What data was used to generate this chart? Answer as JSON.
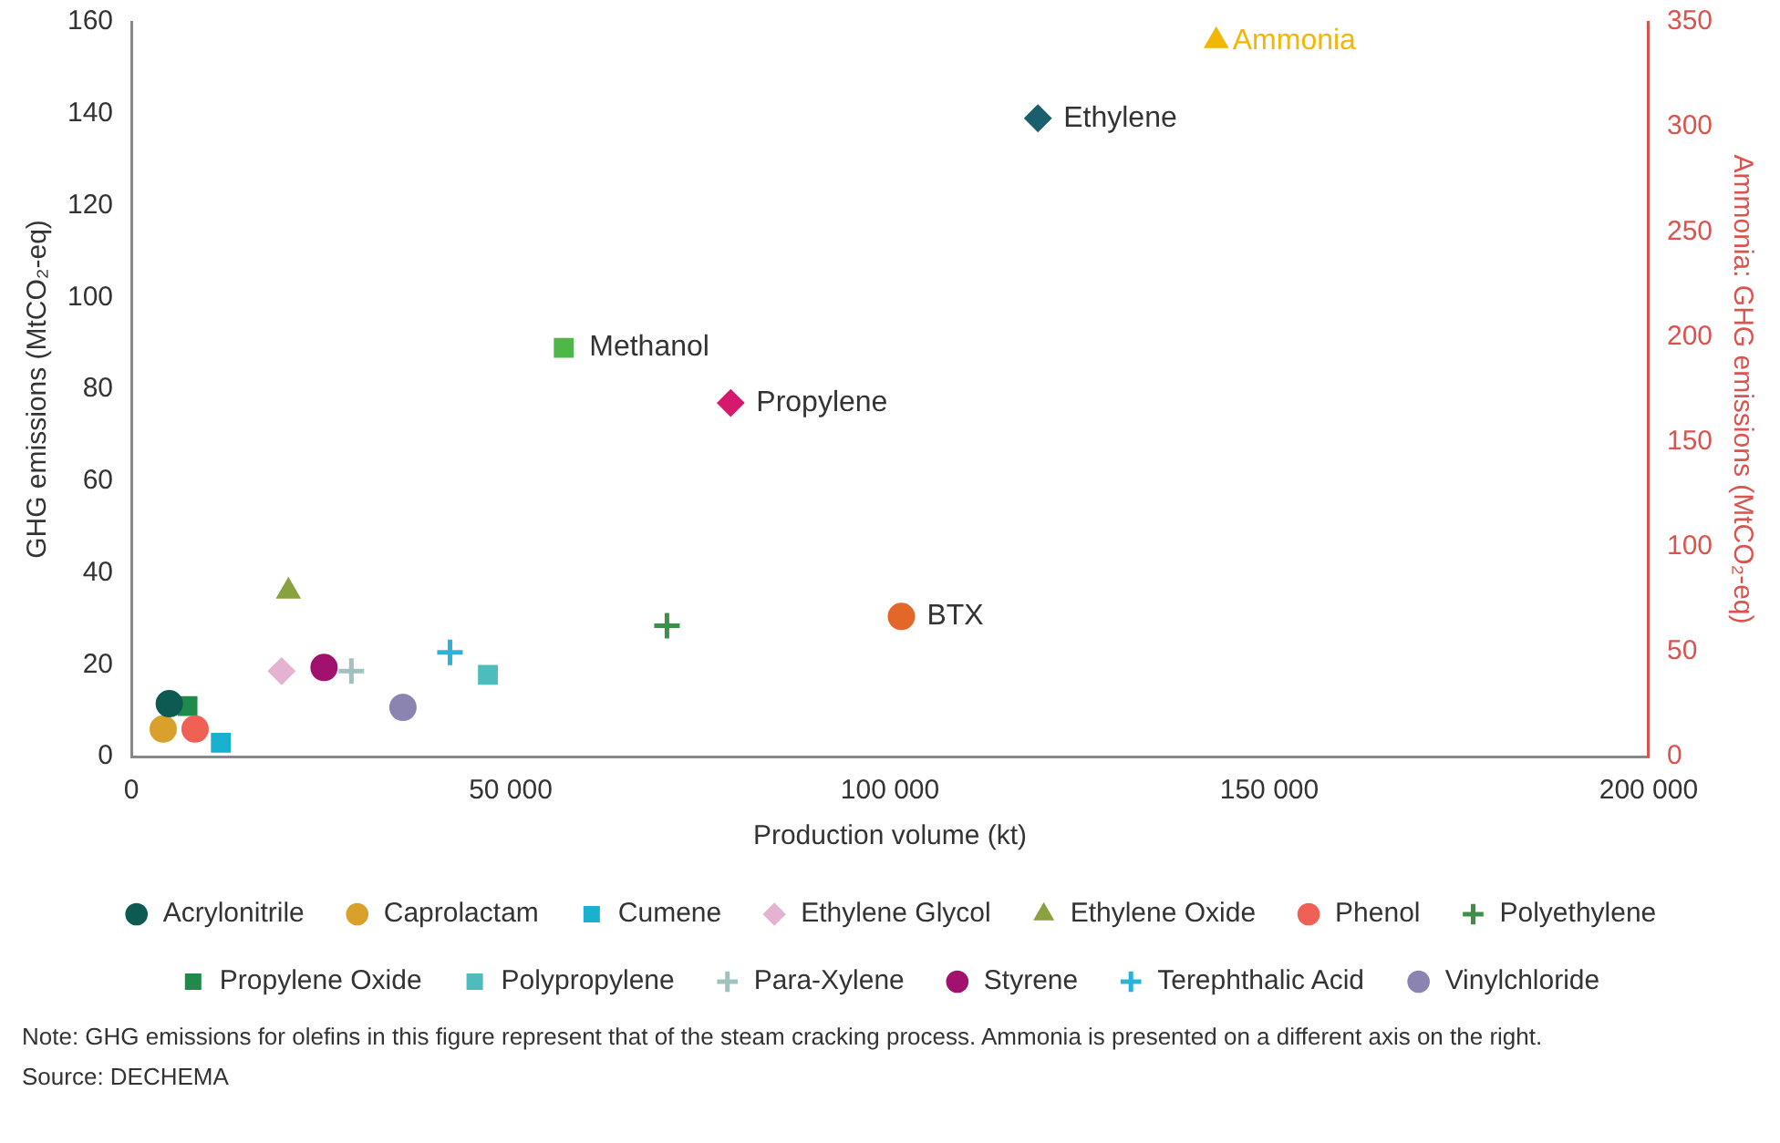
{
  "chart_data": {
    "type": "scatter",
    "xlabel": "Production volume (kt)",
    "ylabel": "GHG emissions (MtCO₂-eq)",
    "y2label": "Ammonia: GHG emissions (MtCO₂-eq)",
    "xlim": [
      0,
      200000
    ],
    "xticks": [
      0,
      {
        "value": 50000,
        "label": "50 000"
      },
      {
        "value": 100000,
        "label": "100 000"
      },
      {
        "value": 150000,
        "label": "150 000"
      },
      {
        "value": 200000,
        "label": "200 000"
      }
    ],
    "ylim": [
      0,
      160
    ],
    "yticks": [
      0,
      20,
      40,
      60,
      80,
      100,
      120,
      140,
      160
    ],
    "y2lim": [
      0,
      350
    ],
    "y2ticks": [
      0,
      50,
      100,
      150,
      200,
      250,
      300,
      350
    ],
    "grid": false,
    "legend": "bottom",
    "series": [
      {
        "name": "Acrylonitrile",
        "color": "#0d5a52",
        "marker": "circle",
        "x": [
          5000
        ],
        "values": [
          11.5
        ]
      },
      {
        "name": "Caprolactam",
        "color": "#d9a02c",
        "marker": "circle",
        "x": [
          4200
        ],
        "values": [
          6
        ]
      },
      {
        "name": "Cumene",
        "color": "#1ab0cf",
        "marker": "square",
        "x": [
          11800
        ],
        "values": [
          3
        ]
      },
      {
        "name": "Ethylene Glycol",
        "color": "#e6b2d2",
        "marker": "diamond",
        "x": [
          19800
        ],
        "values": [
          18.6
        ]
      },
      {
        "name": "Ethylene Oxide",
        "color": "#8aa140",
        "marker": "triangle",
        "x": [
          20700
        ],
        "values": [
          36
        ]
      },
      {
        "name": "Phenol",
        "color": "#ef6055",
        "marker": "circle",
        "x": [
          8400
        ],
        "values": [
          6
        ]
      },
      {
        "name": "Polyethylene",
        "color": "#3f8f4a",
        "marker": "cross",
        "x": [
          70600
        ],
        "values": [
          28.5
        ]
      },
      {
        "name": "Propylene Oxide",
        "color": "#1f8a4c",
        "marker": "square",
        "x": [
          7400
        ],
        "values": [
          11
        ]
      },
      {
        "name": "Polypropylene",
        "color": "#4cbcbc",
        "marker": "square",
        "x": [
          47000
        ],
        "values": [
          17.8
        ]
      },
      {
        "name": "Para-Xylene",
        "color": "#9fc2be",
        "marker": "cross",
        "x": [
          29000
        ],
        "values": [
          18.6
        ]
      },
      {
        "name": "Styrene",
        "color": "#a0126e",
        "marker": "circle",
        "x": [
          25400
        ],
        "values": [
          19.4
        ]
      },
      {
        "name": "Terephthalic Acid",
        "color": "#2ab3d6",
        "marker": "cross",
        "x": [
          42000
        ],
        "values": [
          22.7
        ]
      },
      {
        "name": "Vinylchloride",
        "color": "#8c84b0",
        "marker": "circle",
        "x": [
          35800
        ],
        "values": [
          10.7
        ]
      },
      {
        "name": "Ammonia",
        "color": "#f2b705",
        "marker": "triangle",
        "axis": "y2",
        "x": [
          143000
        ],
        "values": [
          341
        ]
      },
      {
        "color": "#1a5f6b",
        "marker": "diamond",
        "x": [
          119500
        ],
        "values": [
          139
        ]
      },
      {
        "color": "#4db848",
        "marker": "square",
        "x": [
          57000
        ],
        "values": [
          89
        ]
      },
      {
        "color": "#d6186e",
        "marker": "diamond",
        "x": [
          79000
        ],
        "values": [
          77
        ]
      },
      {
        "color": "#e4672a",
        "marker": "circle",
        "x": [
          101500
        ],
        "values": [
          30.5
        ]
      }
    ],
    "annotations": [
      {
        "text": "Ethylene",
        "x": 119500,
        "y": 139
      },
      {
        "text": "Methanol",
        "x": 57000,
        "y": 89
      },
      {
        "text": "Propylene",
        "x": 79000,
        "y": 77
      },
      {
        "text": "BTX",
        "x": 101500,
        "y": 30.5
      },
      "Note: GHG emissions for olefins in this figure represent that of the steam cracking process. Ammonia is presented on a different axis on the right.",
      "Source: DECHEMA"
    ]
  }
}
